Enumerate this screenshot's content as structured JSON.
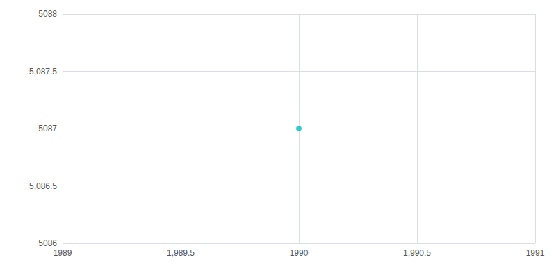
{
  "chart_data": {
    "type": "scatter",
    "x": [
      1990
    ],
    "y": [
      5087
    ],
    "color": "#00BEBE",
    "xlim": [
      1989,
      1991
    ],
    "xticks": [
      1989,
      {
        "value": 1989.5,
        "label": "1,989.5"
      },
      1990,
      {
        "value": 1990.5,
        "label": "1,990.5"
      },
      1991
    ],
    "ylim": [
      5086,
      5088
    ],
    "yticks": [
      5086,
      {
        "value": 5086.5,
        "label": "5,086.5"
      },
      5087,
      {
        "value": 5087.5,
        "label": "5,087.5"
      },
      5088
    ],
    "grid": true
  }
}
